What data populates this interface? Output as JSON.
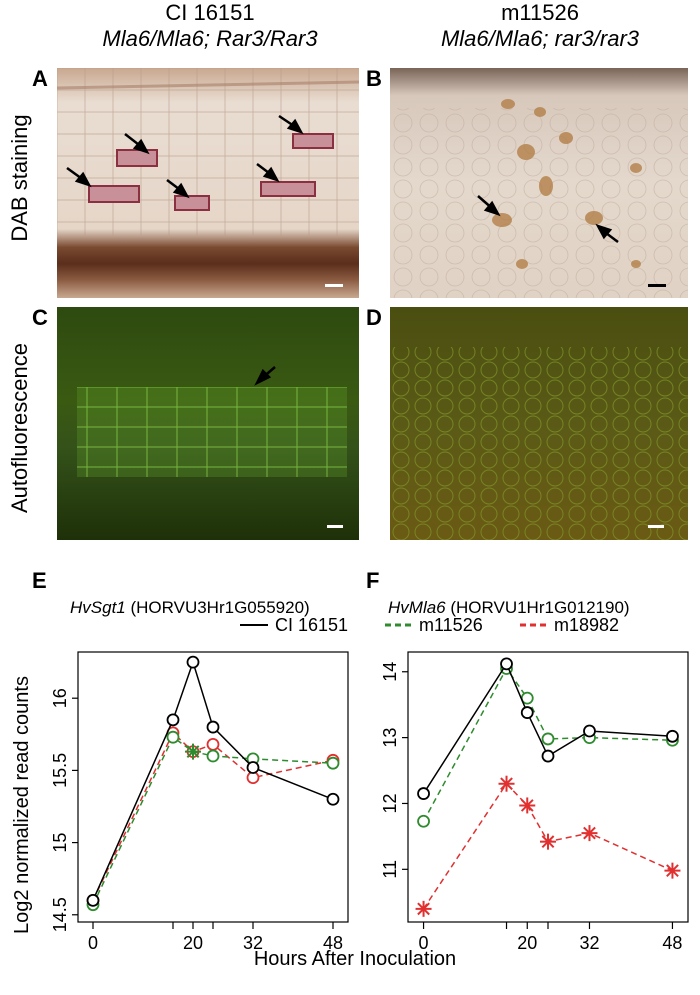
{
  "columns": [
    {
      "strain": "CI 16151",
      "genotype": "Mla6/Mla6; Rar3/Rar3"
    },
    {
      "strain": "m11526",
      "genotype": "Mla6/Mla6; rar3/rar3"
    }
  ],
  "rows": [
    "DAB staining",
    "Autofluorescence"
  ],
  "panels": [
    "A",
    "B",
    "C",
    "D",
    "E",
    "F"
  ],
  "genes": [
    {
      "name": "HvSgt1",
      "id": "(HORVU3Hr1G055920)"
    },
    {
      "name": "HvMla6",
      "id": "(HORVU1Hr1G012190)"
    }
  ],
  "legend": [
    {
      "label": "CI 16151",
      "color": "#000000",
      "style": "solid"
    },
    {
      "label": "m11526",
      "color": "#2e8b2e",
      "style": "dashed"
    },
    {
      "label": "m18982",
      "color": "#e03030",
      "style": "dashed"
    }
  ],
  "ylabel": "Log2 normalized read counts",
  "xlabel": "Hours After Inoculation",
  "chart_data": [
    {
      "type": "line",
      "panel": "E",
      "x": [
        0,
        16,
        20,
        24,
        32,
        48
      ],
      "xticks": [
        "0",
        "20",
        "32",
        "48"
      ],
      "ylim": [
        14.5,
        16.25
      ],
      "yticks": [
        "14.5",
        "15",
        "15.5",
        "16"
      ],
      "series": [
        {
          "name": "CI 16151",
          "values": [
            14.6,
            15.85,
            16.25,
            15.8,
            15.52,
            15.3
          ]
        },
        {
          "name": "m11526",
          "values": [
            14.57,
            15.73,
            15.63,
            15.6,
            15.58,
            15.55
          ]
        },
        {
          "name": "m18982",
          "values": [
            14.6,
            15.76,
            15.63,
            15.68,
            15.45,
            15.57
          ]
        }
      ]
    },
    {
      "type": "line",
      "panel": "F",
      "x": [
        0,
        16,
        20,
        24,
        32,
        48
      ],
      "xticks": [
        "0",
        "20",
        "32",
        "48"
      ],
      "ylim": [
        10.3,
        14.2
      ],
      "yticks": [
        "11",
        "12",
        "13",
        "14"
      ],
      "series": [
        {
          "name": "CI 16151",
          "values": [
            12.15,
            14.12,
            13.38,
            12.72,
            13.1,
            13.02
          ]
        },
        {
          "name": "m11526",
          "values": [
            11.73,
            14.05,
            13.6,
            12.98,
            13.0,
            12.96
          ]
        },
        {
          "name": "m18982",
          "values": [
            10.4,
            12.3,
            11.97,
            11.42,
            11.55,
            10.98
          ]
        }
      ]
    }
  ],
  "colors": {
    "ci16151": "#000000",
    "m11526": "#2e8b2e",
    "m18982": "#e03030"
  }
}
